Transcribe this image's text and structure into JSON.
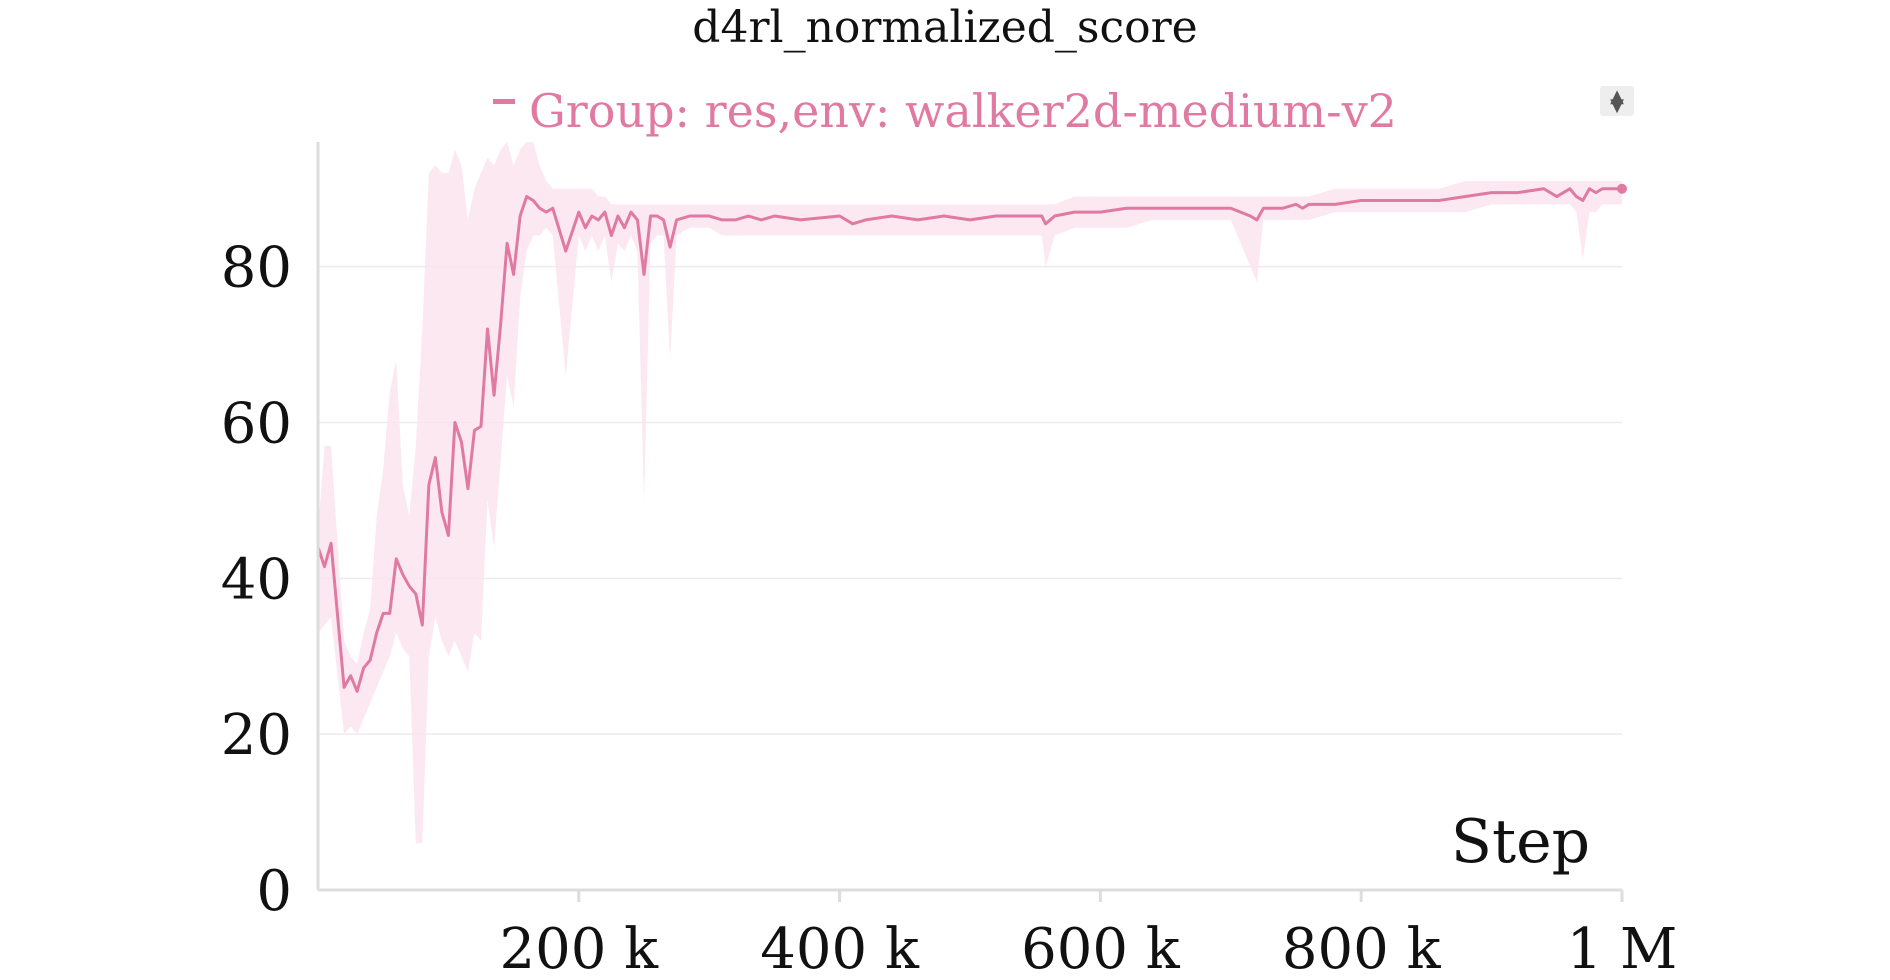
{
  "colors": {
    "series": "#e07aa3",
    "band": "#fce4ee",
    "grid": "#ececec",
    "axis": "#dddddd"
  },
  "chart_data": {
    "type": "line",
    "title": "d4rl_normalized_score",
    "xlabel": "Step",
    "ylabel": "",
    "xlim": [
      0,
      1000000
    ],
    "ylim": [
      0,
      96
    ],
    "grid": true,
    "legend_position": "top",
    "x_ticks": [
      200000,
      400000,
      600000,
      800000,
      1000000
    ],
    "x_tick_labels": [
      "200 k",
      "400 k",
      "600 k",
      "800 k",
      "1 M"
    ],
    "y_ticks": [
      0,
      20,
      40,
      60,
      80
    ],
    "y_tick_labels": [
      "0",
      "20",
      "40",
      "60",
      "80"
    ],
    "series": [
      {
        "name": "Group: res,env: walker2d-medium-v2",
        "color": "#e07aa3",
        "x": [
          0,
          5000,
          10000,
          20000,
          25000,
          30000,
          35000,
          40000,
          45000,
          50000,
          55000,
          60000,
          65000,
          70000,
          75000,
          80000,
          85000,
          90000,
          95000,
          100000,
          105000,
          110000,
          115000,
          120000,
          125000,
          130000,
          135000,
          140000,
          145000,
          150000,
          155000,
          160000,
          165000,
          170000,
          175000,
          180000,
          190000,
          200000,
          205000,
          210000,
          215000,
          220000,
          225000,
          230000,
          235000,
          240000,
          245000,
          250000,
          255000,
          260000,
          265000,
          270000,
          275000,
          285000,
          300000,
          310000,
          320000,
          330000,
          340000,
          350000,
          370000,
          400000,
          410000,
          420000,
          440000,
          460000,
          480000,
          500000,
          520000,
          540000,
          555000,
          558000,
          565000,
          580000,
          600000,
          620000,
          640000,
          660000,
          680000,
          700000,
          715000,
          720000,
          725000,
          740000,
          750000,
          755000,
          760000,
          780000,
          800000,
          820000,
          840000,
          860000,
          880000,
          900000,
          920000,
          940000,
          945000,
          950000,
          960000,
          965000,
          970000,
          975000,
          980000,
          985000,
          990000,
          1000000
        ],
        "y": [
          44,
          41.5,
          44.5,
          26,
          27.5,
          25.5,
          28.5,
          29.5,
          33,
          35.5,
          35.5,
          42.5,
          40.5,
          39,
          38,
          34,
          52,
          55.5,
          48.5,
          45.5,
          60,
          57.5,
          51.5,
          59,
          59.5,
          72,
          63.5,
          72.5,
          83,
          79,
          86.5,
          89,
          88.5,
          87.5,
          87,
          87.5,
          82,
          87,
          85,
          86.5,
          86,
          87,
          84,
          86.5,
          85,
          87,
          86,
          79,
          86.5,
          86.5,
          86,
          82.5,
          86,
          86.5,
          86.5,
          86,
          86,
          86.5,
          86,
          86.5,
          86,
          86.5,
          85.5,
          86,
          86.5,
          86,
          86.5,
          86,
          86.5,
          86.5,
          86.5,
          85.5,
          86.5,
          87,
          87,
          87.5,
          87.5,
          87.5,
          87.5,
          87.5,
          86.5,
          86,
          87.5,
          87.5,
          88,
          87.5,
          88,
          88,
          88.5,
          88.5,
          88.5,
          88.5,
          89,
          89.5,
          89.5,
          90,
          89.5,
          89,
          90,
          89,
          88.5,
          90,
          89.5,
          90,
          90,
          90
        ],
        "band_upper": [
          46,
          57,
          57,
          32,
          30,
          29,
          33,
          36,
          48,
          54,
          64,
          68,
          52,
          48,
          57,
          72,
          92,
          93,
          92,
          92,
          95,
          93,
          86,
          90,
          92,
          94,
          93,
          95,
          96,
          93,
          95,
          96,
          96,
          93,
          91,
          90,
          90,
          90,
          90,
          90,
          89,
          89,
          88,
          88,
          88,
          88,
          88,
          88,
          88,
          88,
          88,
          88,
          88,
          88,
          88,
          88,
          88,
          88,
          88,
          88,
          88,
          88,
          88,
          88,
          88,
          88,
          88,
          88,
          88,
          88,
          88,
          88,
          88,
          89,
          89,
          89,
          89,
          89,
          89,
          89,
          89,
          89,
          89,
          89,
          89,
          89,
          89,
          90,
          90,
          90,
          90,
          90,
          91,
          91,
          91,
          91,
          91,
          91,
          91,
          91,
          91,
          91,
          91,
          91,
          91,
          91
        ],
        "band_lower": [
          33,
          34,
          35,
          20,
          21,
          20,
          22,
          24,
          26,
          28,
          30,
          33,
          31,
          30,
          6,
          6,
          30,
          35,
          32,
          30,
          32,
          30,
          28,
          33,
          32,
          50,
          44,
          55,
          66,
          62,
          76,
          82,
          84,
          84,
          85,
          84,
          66,
          84,
          82,
          84,
          82,
          84,
          78,
          83,
          82,
          84,
          82,
          50,
          83,
          84,
          84,
          68,
          84,
          85,
          85,
          84,
          84,
          84,
          84,
          84,
          84,
          84,
          84,
          84,
          84,
          84,
          84,
          84,
          84,
          84,
          84,
          80,
          84,
          85,
          85,
          85,
          86,
          86,
          86,
          86,
          80,
          78,
          86,
          86,
          86,
          86,
          86,
          87,
          87,
          87,
          87,
          87,
          87,
          88,
          88,
          88,
          88,
          88,
          88,
          87,
          81,
          87,
          87,
          88,
          88,
          88
        ]
      }
    ]
  }
}
